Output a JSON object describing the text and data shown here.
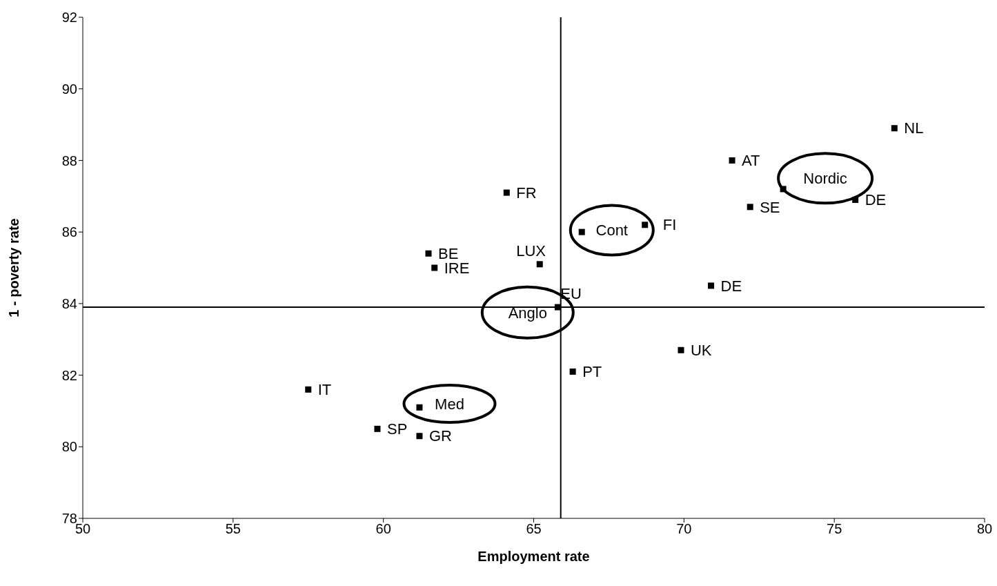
{
  "chart_data": {
    "type": "scatter",
    "xlabel": "Employment rate",
    "ylabel": "1 - poverty rate",
    "xlim": [
      50,
      80
    ],
    "xticks": [
      50,
      55,
      60,
      65,
      70,
      75,
      80
    ],
    "ylim": [
      78,
      92
    ],
    "yticks": [
      78,
      80,
      82,
      84,
      86,
      88,
      90,
      92
    ],
    "grid": false,
    "legend": false,
    "marker": "square",
    "series": [
      {
        "name": "NL",
        "color": "#000000",
        "x": [
          77.0
        ],
        "values": [
          88.9
        ]
      },
      {
        "name": "AT",
        "color": "#000000",
        "x": [
          71.6
        ],
        "values": [
          88.0
        ]
      },
      {
        "color": "#000000",
        "x": [
          73.3
        ],
        "values": [
          87.2
        ]
      },
      {
        "name": "DE",
        "color": "#000000",
        "x": [
          75.7
        ],
        "values": [
          86.9
        ]
      },
      {
        "name": "SE",
        "color": "#000000",
        "x": [
          72.2
        ],
        "values": [
          86.7
        ]
      },
      {
        "name": "FR",
        "color": "#000000",
        "x": [
          64.1
        ],
        "values": [
          87.1
        ]
      },
      {
        "color": "#000000",
        "x": [
          66.6
        ],
        "values": [
          86.0
        ]
      },
      {
        "name": "FI",
        "color": "#000000",
        "x": [
          68.7
        ],
        "values": [
          86.2
        ]
      },
      {
        "name": "BE",
        "color": "#000000",
        "x": [
          61.5
        ],
        "values": [
          85.4
        ]
      },
      {
        "name": "IRE",
        "color": "#000000",
        "x": [
          61.7
        ],
        "values": [
          85.0
        ]
      },
      {
        "name": "LUX",
        "color": "#000000",
        "x": [
          65.2
        ],
        "values": [
          85.1
        ]
      },
      {
        "name": "EU",
        "color": "#000000",
        "x": [
          65.8
        ],
        "values": [
          83.9
        ]
      },
      {
        "name": "DE",
        "color": "#000000",
        "x": [
          70.9
        ],
        "values": [
          84.5
        ]
      },
      {
        "name": "UK",
        "color": "#000000",
        "x": [
          69.9
        ],
        "values": [
          82.7
        ]
      },
      {
        "name": "PT",
        "color": "#000000",
        "x": [
          66.3
        ],
        "values": [
          82.1
        ]
      },
      {
        "name": "IT",
        "color": "#000000",
        "x": [
          57.5
        ],
        "values": [
          81.6
        ]
      },
      {
        "color": "#000000",
        "x": [
          61.2
        ],
        "values": [
          81.1
        ]
      },
      {
        "name": "SP",
        "color": "#000000",
        "x": [
          59.8
        ],
        "values": [
          80.5
        ]
      },
      {
        "name": "GR",
        "color": "#000000",
        "x": [
          61.2
        ],
        "values": [
          80.3
        ]
      }
    ],
    "ref_lines": [
      {
        "axis": "x",
        "value": 65.9,
        "color": "#000000"
      },
      {
        "axis": "y",
        "value": 83.9,
        "color": "#000000"
      }
    ],
    "annotations": [
      "Nordic",
      "Cont",
      "Anglo",
      "Med"
    ]
  }
}
